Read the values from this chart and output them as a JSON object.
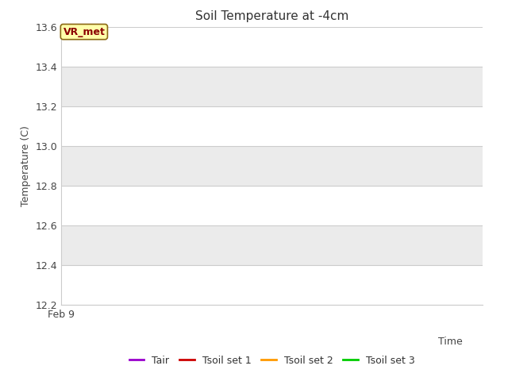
{
  "title": "Soil Temperature at -4cm",
  "ylabel": "Temperature (C)",
  "xlabel": "Time",
  "ylim": [
    12.2,
    13.6
  ],
  "yticks": [
    12.2,
    12.4,
    12.6,
    12.8,
    13.0,
    13.2,
    13.4,
    13.6
  ],
  "x_label_text": "Feb 9",
  "annotation_text": "VR_met",
  "annotation_color": "#8B0000",
  "annotation_bg": "#FFFFAA",
  "annotation_border": "#8B6914",
  "legend_entries": [
    {
      "label": "Tair",
      "color": "#9900CC"
    },
    {
      "label": "Tsoil set 1",
      "color": "#CC0000"
    },
    {
      "label": "Tsoil set 2",
      "color": "#FF9900"
    },
    {
      "label": "Tsoil set 3",
      "color": "#00CC00"
    }
  ],
  "band_color_light": "#EBEBEB",
  "band_color_white": "#FFFFFF",
  "figure_bg": "#FFFFFF",
  "spine_color": "#CCCCCC"
}
